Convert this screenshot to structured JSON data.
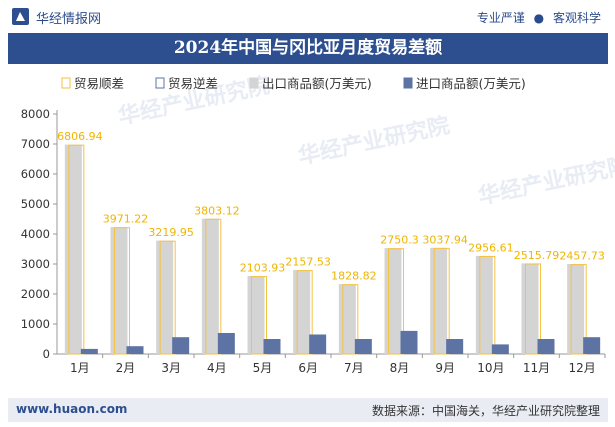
{
  "header": {
    "brand": "华经情报网",
    "slogan_left": "专业严谨",
    "slogan_right": "客观科学"
  },
  "title": "2024年中国与冈比亚月度贸易差额",
  "footer": {
    "site": "www.huaon.com",
    "source": "数据来源：中国海关，华经产业研究院整理"
  },
  "watermark": "华经产业研究院",
  "colors": {
    "brand_blue": "#2e4f8f",
    "surplus_border": "#f5c242",
    "surplus_label": "#f0b400",
    "export": "#d4d4d4",
    "import": "#5d73a4"
  },
  "chart_data": {
    "type": "bar",
    "categories": [
      "1月",
      "2月",
      "3月",
      "4月",
      "5月",
      "6月",
      "7月",
      "8月",
      "9月",
      "10月",
      "11月",
      "12月"
    ],
    "series": [
      {
        "name": "贸易顺差",
        "values": [
          6806.94,
          3971.22,
          3219.95,
          3803.12,
          2103.93,
          2157.53,
          1828.82,
          2750.3,
          3037.94,
          2956.61,
          2515.79,
          2457.73
        ]
      },
      {
        "name": "贸易逆差",
        "values": [
          0,
          0,
          0,
          0,
          0,
          0,
          0,
          0,
          0,
          0,
          0,
          0
        ]
      },
      {
        "name": "出口商品额(万美元)",
        "values": [
          6980,
          4230,
          3780,
          4510,
          2600,
          2800,
          2330,
          3530,
          3540,
          3270,
          3020,
          3000
        ]
      },
      {
        "name": "进口商品额(万美元)",
        "values": [
          170,
          260,
          560,
          700,
          500,
          650,
          500,
          770,
          500,
          320,
          500,
          560
        ]
      }
    ],
    "surplus_labels": [
      "6806.94",
      "3971.22",
      "3219.95",
      "3803.12",
      "2103.93",
      "2157.53",
      "1828.82",
      "2750.3",
      "3037.94",
      "2956.61",
      "2515.79",
      "2457.73"
    ],
    "yticks": [
      "0",
      "1000",
      "2000",
      "3000",
      "4000",
      "5000",
      "6000",
      "7000",
      "8000"
    ],
    "ylim": [
      0,
      8000
    ],
    "legend_position": "top",
    "grid": false
  }
}
